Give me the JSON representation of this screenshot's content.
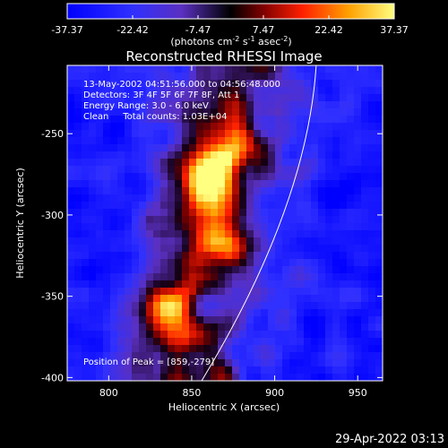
{
  "chart_data": {
    "type": "heatmap",
    "title": "Reconstructed RHESSI Image",
    "xlabel": "Heliocentric X (arcsec)",
    "ylabel": "Heliocentric Y (arcsec)",
    "xlim": [
      775,
      965
    ],
    "ylim": [
      -402,
      -208
    ],
    "xticks": [
      800,
      850,
      900,
      950
    ],
    "yticks": [
      -250,
      -300,
      -350,
      -400
    ],
    "colorbar": {
      "ticks": [
        "-37.37",
        "-22.42",
        "-7.47",
        "7.47",
        "22.42",
        "37.37"
      ],
      "range": [
        -37.37,
        37.37
      ],
      "label_parts": [
        "(photons cm",
        "-2",
        " s",
        "-1",
        " asec",
        "-2",
        ")"
      ]
    },
    "annotations": [
      "13-May-2002 04:51:56.000 to 04:56:48.000",
      "Detectors: 3F 4F 5F 6F 7F 8F, Att 1",
      "Energy Range: 3.0 - 6.0 keV",
      "Clean     Total counts: 1.03E+04"
    ],
    "peak_label": "Position of Peak = [859,-279]",
    "peak": [
      859,
      -279
    ],
    "sources": [
      {
        "x": 859,
        "y": -279,
        "value": 37
      },
      {
        "x": 835,
        "y": -360,
        "value": 26
      },
      {
        "x": 870,
        "y": -258,
        "value": 20
      },
      {
        "x": 868,
        "y": -318,
        "value": 17
      }
    ],
    "limb": [
      [
        856,
        -402
      ],
      [
        905,
        -300
      ],
      [
        925,
        -208
      ]
    ]
  },
  "timestamp": "29-Apr-2022 03:13"
}
